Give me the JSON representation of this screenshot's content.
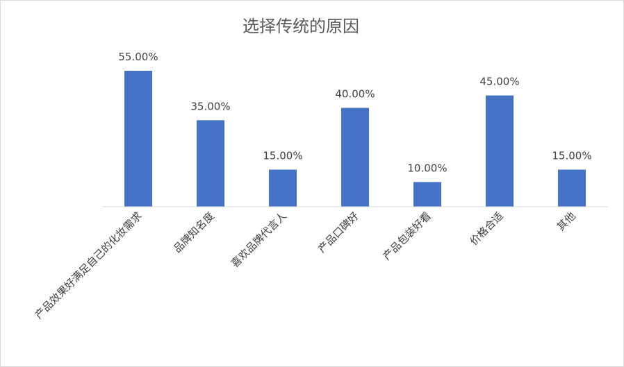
{
  "chart_data": {
    "type": "bar",
    "title": "选择传统的原因",
    "categories": [
      "产品效果好满足自己的化妆需求",
      "品牌知名度",
      "喜欢品牌代言人",
      "产品口碑好",
      "产品包装好看",
      "价格合适",
      "其他"
    ],
    "values": [
      55.0,
      35.0,
      15.0,
      40.0,
      10.0,
      45.0,
      15.0
    ],
    "value_labels": [
      "55.00%",
      "35.00%",
      "15.00%",
      "40.00%",
      "10.00%",
      "45.00%",
      "15.00%"
    ],
    "unit": "%",
    "ylim": [
      0,
      55
    ],
    "grid": false,
    "legend": "none",
    "bar_color": "#4472c4",
    "axis_color": "#d9d9d9"
  }
}
